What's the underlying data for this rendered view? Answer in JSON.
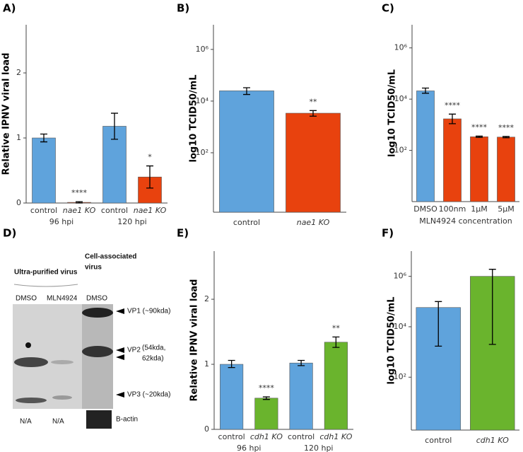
{
  "chart_data": [
    {
      "type": "bar",
      "panel": "A)",
      "ylabel": "Relative IPNV viral load",
      "categories": [
        "control",
        "nae1 KO",
        "control",
        "nae1 KO"
      ],
      "group_labels": [
        "96 hpi",
        "120 hpi"
      ],
      "values": [
        1.0,
        0.01,
        1.18,
        0.4
      ],
      "lower": [
        0.94,
        0.0,
        0.98,
        0.23
      ],
      "upper": [
        1.06,
        0.02,
        1.38,
        0.57
      ],
      "annotations": [
        null,
        "****",
        null,
        "*"
      ],
      "colors": [
        "#5fa3dc",
        "#e8420e",
        "#5fa3dc",
        "#e8420e"
      ],
      "ylim": [
        0,
        2.74
      ],
      "yticks": [
        0,
        1,
        2
      ],
      "log": false
    },
    {
      "type": "bar",
      "panel": "B)",
      "ylabel": "log10 TCID50/mL",
      "categories": [
        "control",
        "nae1 KO"
      ],
      "values": [
        25000,
        3400
      ],
      "lower": [
        18000,
        2600
      ],
      "upper": [
        33000,
        4300
      ],
      "annotations": [
        null,
        "**"
      ],
      "colors": [
        "#5fa3dc",
        "#e8420e"
      ],
      "ylim": [
        0.5,
        9000000
      ],
      "yticks": [
        {
          "value": 100,
          "label": "10²"
        },
        {
          "value": 10000,
          "label": "10⁴"
        },
        {
          "value": 1000000,
          "label": "10⁶"
        }
      ],
      "log": true
    },
    {
      "type": "bar",
      "panel": "C)",
      "ylabel": "log10 TCID50/mL",
      "xlabel": "MLN4924 concentration",
      "categories": [
        "DMSO",
        "100nm",
        "1μM",
        "5μM"
      ],
      "values": [
        21000,
        1700,
        340,
        330
      ],
      "lower": [
        17000,
        1100,
        320,
        310
      ],
      "upper": [
        27000,
        2600,
        360,
        350
      ],
      "annotations": [
        null,
        "****",
        "****",
        "****"
      ],
      "colors": [
        "#5fa3dc",
        "#e8420e",
        "#e8420e",
        "#e8420e"
      ],
      "ylim": [
        1,
        8000000
      ],
      "yticks": [
        {
          "value": 100,
          "label": "10²"
        },
        {
          "value": 10000,
          "label": "10⁴"
        },
        {
          "value": 1000000,
          "label": "10⁶"
        }
      ],
      "log": true
    },
    {
      "type": "bar",
      "panel": "E)",
      "ylabel": "Relative IPNV viral load",
      "categories": [
        "control",
        "cdh1 KO",
        "control",
        "cdh1 KO"
      ],
      "group_labels": [
        "96 hpi",
        "120 hpi"
      ],
      "values": [
        1.0,
        0.48,
        1.02,
        1.34
      ],
      "lower": [
        0.95,
        0.46,
        0.98,
        1.26
      ],
      "upper": [
        1.06,
        0.5,
        1.06,
        1.42
      ],
      "annotations": [
        null,
        "****",
        null,
        "**"
      ],
      "colors": [
        "#5fa3dc",
        "#6ab42d",
        "#5fa3dc",
        "#6ab42d"
      ],
      "ylim": [
        0,
        2.74
      ],
      "yticks": [
        0,
        1,
        2
      ],
      "log": false
    },
    {
      "type": "bar",
      "panel": "F)",
      "ylabel": "log10 TCID50/mL",
      "categories": [
        "control",
        "cdh1 KO"
      ],
      "values": [
        58000,
        1000000
      ],
      "lower": [
        1700,
        2000
      ],
      "upper": [
        100000,
        1900000
      ],
      "annotations": [
        null,
        null
      ],
      "colors": [
        "#5fa3dc",
        "#6ab42d"
      ],
      "ylim": [
        0.8,
        10000000
      ],
      "yticks": [
        {
          "value": 100,
          "label": "10²"
        },
        {
          "value": 10000,
          "label": "10⁴"
        },
        {
          "value": 1000000,
          "label": "10⁶"
        }
      ],
      "log": true
    }
  ],
  "blot": {
    "panel": "D)",
    "group_1": "Ultra-purified virus",
    "group_2": [
      "Cell-associated",
      "virus"
    ],
    "lanes": [
      "DMSO",
      "MLN4924",
      "DMSO"
    ],
    "bands": [
      "VP1 (~90kda)",
      "VP2",
      "(54kda,",
      "62kda)",
      "VP3 (~20kda)"
    ],
    "footer": [
      "N/A",
      "N/A",
      "B-actin"
    ]
  }
}
